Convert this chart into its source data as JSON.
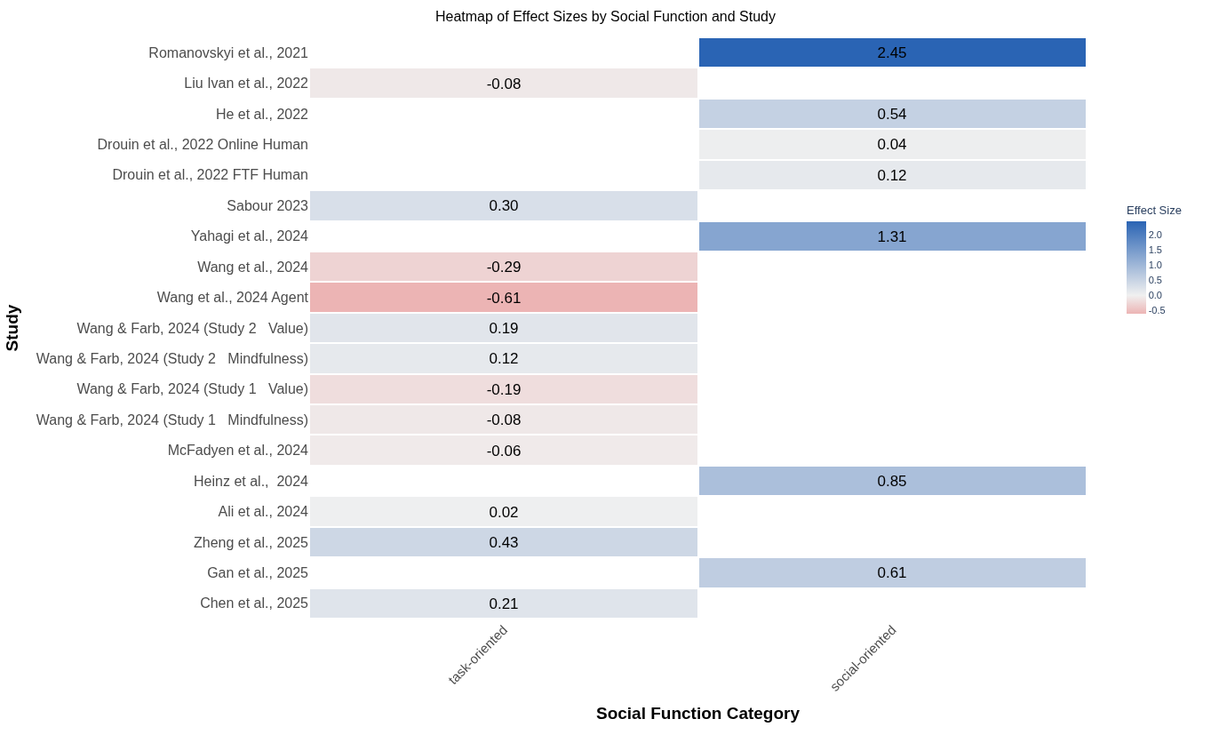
{
  "chart_data": {
    "type": "heatmap",
    "title": "Heatmap of Effect Sizes by Social Function and Study",
    "xlabel": "Social Function Category",
    "ylabel": "Study",
    "clabel": "Effect Size",
    "categories": [
      "task-oriented",
      "social-oriented"
    ],
    "y_categories": [
      "Romanovskyi et al., 2021",
      "Liu Ivan et al., 2022",
      "He et al., 2022",
      "Drouin et al., 2022 Online Human",
      "Drouin et al., 2022 FTF Human",
      "Sabour 2023",
      "Yahagi et al., 2024",
      "Wang et al., 2024",
      "Wang et al., 2024 Agent",
      "Wang & Farb, 2024 (Study 2   Value)",
      "Wang & Farb, 2024 (Study 2   Mindfulness)",
      "Wang & Farb, 2024 (Study 1   Value)",
      "Wang & Farb, 2024 (Study 1   Mindfulness)",
      "McFadyen et al., 2024",
      "Heinz et al.,  2024",
      "Ali et al., 2024",
      "Zheng et al., 2025",
      "Gan et al., 2025",
      "Chen et al., 2025"
    ],
    "cells": [
      [
        null,
        2.45
      ],
      [
        -0.08,
        null
      ],
      [
        null,
        0.54
      ],
      [
        null,
        0.04
      ],
      [
        null,
        0.12
      ],
      [
        0.3,
        null
      ],
      [
        null,
        1.31
      ],
      [
        -0.29,
        null
      ],
      [
        -0.61,
        null
      ],
      [
        0.19,
        null
      ],
      [
        0.12,
        null
      ],
      [
        -0.19,
        null
      ],
      [
        -0.08,
        null
      ],
      [
        -0.06,
        null
      ],
      [
        null,
        0.85
      ],
      [
        0.02,
        null
      ],
      [
        0.43,
        null
      ],
      [
        null,
        0.61
      ],
      [
        0.21,
        null
      ]
    ],
    "cell_labels": [
      [
        null,
        "2.45"
      ],
      [
        "-0.08",
        null
      ],
      [
        null,
        "0.54"
      ],
      [
        null,
        "0.04"
      ],
      [
        null,
        "0.12"
      ],
      [
        "0.30",
        null
      ],
      [
        null,
        "1.31"
      ],
      [
        "-0.29",
        null
      ],
      [
        "-0.61",
        null
      ],
      [
        "0.19",
        null
      ],
      [
        "0.12",
        null
      ],
      [
        "-0.19",
        null
      ],
      [
        "-0.08",
        null
      ],
      [
        "-0.06",
        null
      ],
      [
        null,
        "0.85"
      ],
      [
        "0.02",
        null
      ],
      [
        "0.43",
        null
      ],
      [
        null,
        "0.61"
      ],
      [
        "0.21",
        null
      ]
    ],
    "clim": [
      -0.61,
      2.45
    ],
    "cticks": [
      -0.5,
      {
        "value": 0,
        "label": "0.0"
      },
      0.5,
      {
        "value": 1,
        "label": "1.0"
      },
      1.5,
      {
        "value": 2,
        "label": "2.0"
      }
    ]
  }
}
